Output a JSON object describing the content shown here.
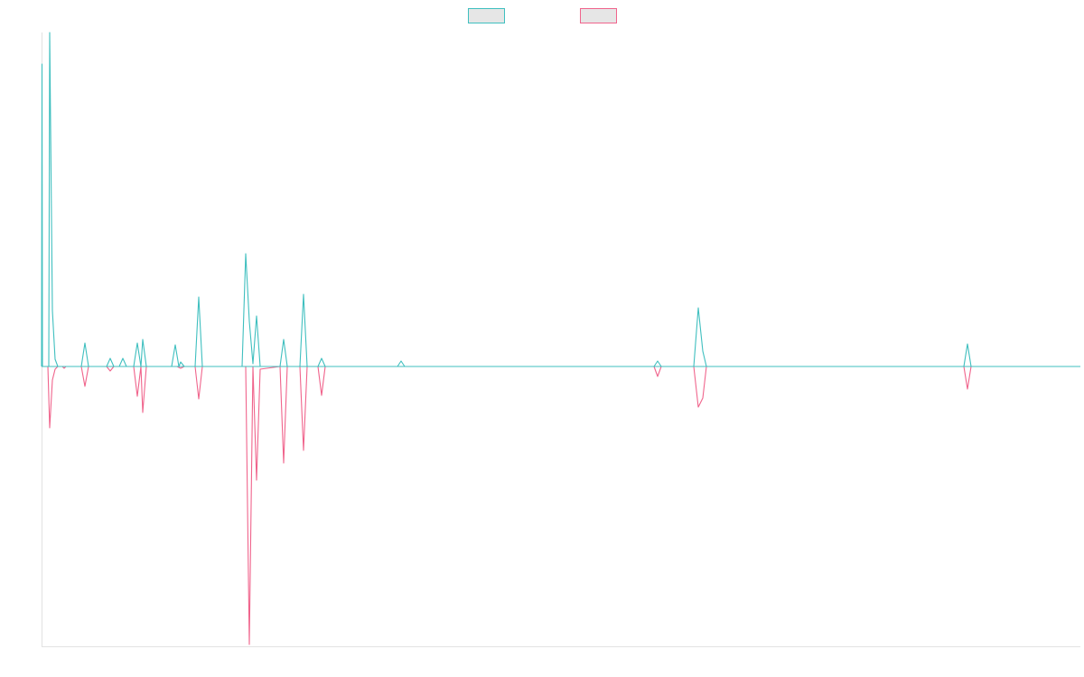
{
  "chart_data": {
    "type": "line",
    "title": "",
    "xlabel": "",
    "ylabel": "",
    "legend_position": "top-center",
    "grid": false,
    "xlim": [
      0,
      1150
    ],
    "ylim": [
      -310,
      370
    ],
    "series": [
      {
        "color": "#3fbfbf",
        "legend_fill": "#e6e6e6",
        "points": [
          [
            0,
            0
          ],
          [
            0.5,
            335
          ],
          [
            1,
            0
          ],
          [
            8,
            0
          ],
          [
            9,
            370
          ],
          [
            12,
            62
          ],
          [
            15,
            8
          ],
          [
            18,
            0
          ],
          [
            21,
            0
          ],
          [
            23,
            0
          ],
          [
            25,
            0
          ],
          [
            27,
            0
          ],
          [
            44,
            0
          ],
          [
            48,
            26
          ],
          [
            52,
            0
          ],
          [
            72,
            0
          ],
          [
            76,
            9
          ],
          [
            80,
            0
          ],
          [
            86,
            0
          ],
          [
            90,
            9
          ],
          [
            94,
            0
          ],
          [
            102,
            0
          ],
          [
            106,
            26
          ],
          [
            110,
            0
          ],
          [
            112,
            30
          ],
          [
            116,
            0
          ],
          [
            144,
            0
          ],
          [
            148,
            24
          ],
          [
            152,
            0
          ],
          [
            154,
            5
          ],
          [
            158,
            0
          ],
          [
            170,
            0
          ],
          [
            174,
            77
          ],
          [
            178,
            0
          ],
          [
            222,
            0
          ],
          [
            226,
            125
          ],
          [
            230,
            50
          ],
          [
            234,
            3
          ],
          [
            238,
            56
          ],
          [
            242,
            0
          ],
          [
            264,
            0
          ],
          [
            268,
            30
          ],
          [
            272,
            0
          ],
          [
            286,
            0
          ],
          [
            290,
            80
          ],
          [
            294,
            0
          ],
          [
            306,
            0
          ],
          [
            310,
            9
          ],
          [
            314,
            0
          ],
          [
            321,
            0
          ],
          [
            326,
            0
          ],
          [
            350,
            0
          ],
          [
            354,
            0
          ],
          [
            356,
            0
          ],
          [
            360,
            0
          ],
          [
            362,
            0
          ],
          [
            394,
            0
          ],
          [
            398,
            6
          ],
          [
            402,
            0
          ],
          [
            426,
            0
          ],
          [
            430,
            0
          ],
          [
            432,
            0
          ],
          [
            678,
            0
          ],
          [
            682,
            6
          ],
          [
            686,
            0
          ],
          [
            722,
            0
          ],
          [
            727,
            65
          ],
          [
            732,
            17
          ],
          [
            736,
            0
          ],
          [
            1021,
            0
          ],
          [
            1025,
            25
          ],
          [
            1029,
            0
          ],
          [
            1031,
            0
          ],
          [
            1033,
            0
          ],
          [
            1150,
            0
          ]
        ]
      },
      {
        "color": "#f0648c",
        "legend_fill": "#e6e6e6",
        "points": [
          [
            0,
            0
          ],
          [
            4,
            0
          ],
          [
            7,
            0
          ],
          [
            9,
            -68
          ],
          [
            12,
            -15
          ],
          [
            15,
            -3
          ],
          [
            18,
            0
          ],
          [
            21,
            0
          ],
          [
            23,
            0
          ],
          [
            25,
            -2
          ],
          [
            27,
            0
          ],
          [
            44,
            0
          ],
          [
            48,
            -22
          ],
          [
            52,
            0
          ],
          [
            72,
            0
          ],
          [
            76,
            -5
          ],
          [
            80,
            0
          ],
          [
            102,
            0
          ],
          [
            106,
            -33
          ],
          [
            110,
            0
          ],
          [
            112,
            -51
          ],
          [
            116,
            0
          ],
          [
            150,
            0
          ],
          [
            154,
            -2
          ],
          [
            158,
            0
          ],
          [
            170,
            0
          ],
          [
            174,
            -36
          ],
          [
            178,
            0
          ],
          [
            222,
            0
          ],
          [
            226,
            0
          ],
          [
            230,
            -308
          ],
          [
            234,
            0
          ],
          [
            238,
            -126
          ],
          [
            242,
            -3
          ],
          [
            264,
            0
          ],
          [
            268,
            -107
          ],
          [
            272,
            0
          ],
          [
            286,
            0
          ],
          [
            290,
            -93
          ],
          [
            294,
            0
          ],
          [
            306,
            0
          ],
          [
            310,
            -32
          ],
          [
            314,
            0
          ],
          [
            321,
            0
          ],
          [
            326,
            0
          ],
          [
            350,
            0
          ],
          [
            354,
            0
          ],
          [
            356,
            0
          ],
          [
            394,
            0
          ],
          [
            398,
            0
          ],
          [
            402,
            0
          ],
          [
            430,
            0
          ],
          [
            432,
            0
          ],
          [
            678,
            0
          ],
          [
            682,
            -11
          ],
          [
            686,
            0
          ],
          [
            722,
            0
          ],
          [
            727,
            -45
          ],
          [
            732,
            -35
          ],
          [
            736,
            0
          ],
          [
            1021,
            0
          ],
          [
            1025,
            -25
          ],
          [
            1029,
            0
          ],
          [
            1150,
            0
          ]
        ]
      }
    ]
  }
}
